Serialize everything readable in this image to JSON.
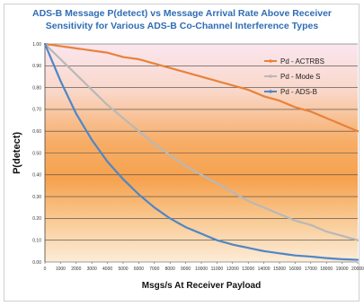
{
  "chart_data": {
    "type": "line",
    "title_line1": "ADS-B Message P(detect) vs Message Arrival Rate Above Receiver",
    "title_line2": "Sensitivity for Various ADS-B Co-Channel Interference Types",
    "xlabel": "Msgs/s At Receiver Payload",
    "ylabel": "P(detect)",
    "xlim": [
      0,
      20000
    ],
    "ylim": [
      0,
      1
    ],
    "xticks": [
      0,
      1000,
      2000,
      3000,
      4000,
      5000,
      6000,
      7000,
      8000,
      9000,
      10000,
      11000,
      12000,
      13000,
      14000,
      15000,
      16000,
      17000,
      18000,
      19000,
      20000
    ],
    "yticks": [
      "0.00",
      "0.10",
      "0.20",
      "0.30",
      "0.40",
      "0.50",
      "0.60",
      "0.70",
      "0.80",
      "0.90",
      "1.00"
    ],
    "grid": true,
    "legend_position": "top-right",
    "x": [
      0,
      1000,
      2000,
      3000,
      4000,
      5000,
      6000,
      7000,
      8000,
      9000,
      10000,
      11000,
      12000,
      13000,
      14000,
      15000,
      16000,
      17000,
      18000,
      19000,
      20000
    ],
    "series": [
      {
        "name": "Pd - ACTRBS",
        "color": "#e8823a",
        "values": [
          1.0,
          0.99,
          0.98,
          0.97,
          0.96,
          0.94,
          0.93,
          0.91,
          0.89,
          0.87,
          0.85,
          0.83,
          0.81,
          0.79,
          0.76,
          0.74,
          0.71,
          0.69,
          0.66,
          0.63,
          0.6
        ]
      },
      {
        "name": "Pd - Mode S",
        "color": "#b8b8b8",
        "values": [
          1.0,
          0.93,
          0.86,
          0.79,
          0.72,
          0.66,
          0.6,
          0.54,
          0.49,
          0.44,
          0.4,
          0.36,
          0.32,
          0.28,
          0.25,
          0.22,
          0.19,
          0.17,
          0.14,
          0.12,
          0.1
        ]
      },
      {
        "name": "Pd - ADS-B",
        "color": "#4f86c6",
        "values": [
          1.0,
          0.83,
          0.68,
          0.56,
          0.46,
          0.38,
          0.31,
          0.25,
          0.2,
          0.16,
          0.13,
          0.1,
          0.08,
          0.065,
          0.05,
          0.04,
          0.03,
          0.025,
          0.018,
          0.013,
          0.01
        ]
      }
    ]
  }
}
